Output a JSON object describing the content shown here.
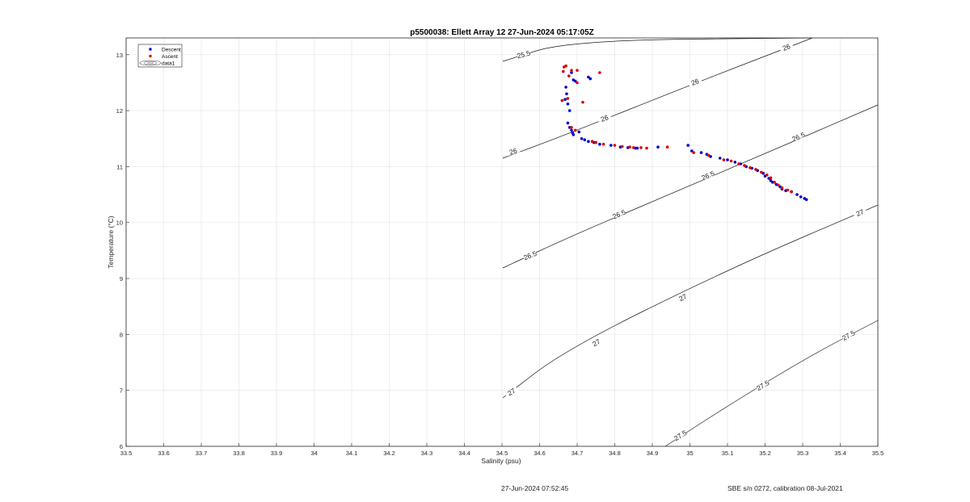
{
  "footer": {
    "left": "27-Jun-2024 07:52:45",
    "right": "SBE s/n 0272, calibration 08-Jul-2021"
  },
  "chart_data": {
    "type": "scatter",
    "title": "p5500038: Ellett Array 12 27-Jun-2024 05:17:05Z",
    "xlabel": "Salinity (psu)",
    "ylabel": "Temperature (°C)",
    "xlim": [
      33.5,
      35.5
    ],
    "ylim": [
      6,
      13.3
    ],
    "x_ticks": [
      33.5,
      33.6,
      33.7,
      33.8,
      33.9,
      34,
      34.1,
      34.2,
      34.3,
      34.4,
      34.5,
      34.6,
      34.7,
      34.8,
      34.9,
      35,
      35.1,
      35.2,
      35.3,
      35.4,
      35.5
    ],
    "x_tick_labels": [
      "33.5",
      "33.6",
      "33.7",
      "33.8",
      "33.9",
      "34",
      "34.1",
      "34.2",
      "34.3",
      "34.4",
      "34.5",
      "34.6",
      "34.7",
      "34.8",
      "34.9",
      "35",
      "35.1",
      "35.2",
      "35.3",
      "35.4",
      "35.5"
    ],
    "y_ticks": [
      6,
      7,
      8,
      9,
      10,
      11,
      12,
      13
    ],
    "y_tick_labels": [
      "6",
      "7",
      "8",
      "9",
      "10",
      "11",
      "12",
      "13"
    ],
    "grid": true,
    "legend_position": "top-left",
    "legend": [
      "Descent",
      "Ascent",
      "data1"
    ],
    "series": [
      {
        "name": "Descent",
        "color": "#0000cc",
        "points": [
          [
            34.685,
            12.68
          ],
          [
            34.69,
            12.55
          ],
          [
            34.695,
            12.53
          ],
          [
            34.73,
            12.6
          ],
          [
            34.735,
            12.57
          ],
          [
            34.67,
            12.42
          ],
          [
            34.672,
            12.3
          ],
          [
            34.668,
            12.2
          ],
          [
            34.675,
            12.12
          ],
          [
            34.68,
            12.0
          ],
          [
            34.675,
            11.78
          ],
          [
            34.68,
            11.7
          ],
          [
            34.685,
            11.65
          ],
          [
            34.688,
            11.6
          ],
          [
            34.69,
            11.57
          ],
          [
            34.705,
            11.62
          ],
          [
            34.712,
            11.5
          ],
          [
            34.72,
            11.48
          ],
          [
            34.73,
            11.45
          ],
          [
            34.745,
            11.43
          ],
          [
            34.76,
            11.4
          ],
          [
            34.79,
            11.38
          ],
          [
            34.815,
            11.35
          ],
          [
            34.835,
            11.34
          ],
          [
            34.855,
            11.33
          ],
          [
            34.86,
            11.33
          ],
          [
            34.915,
            11.35
          ],
          [
            34.995,
            11.38
          ],
          [
            35.005,
            11.28
          ],
          [
            35.03,
            11.25
          ],
          [
            35.045,
            11.22
          ],
          [
            35.055,
            11.18
          ],
          [
            35.08,
            11.15
          ],
          [
            35.1,
            11.12
          ],
          [
            35.12,
            11.08
          ],
          [
            35.135,
            11.05
          ],
          [
            35.15,
            11.0
          ],
          [
            35.165,
            10.97
          ],
          [
            35.18,
            10.93
          ],
          [
            35.195,
            10.88
          ],
          [
            35.2,
            10.83
          ],
          [
            35.21,
            10.79
          ],
          [
            35.215,
            10.75
          ],
          [
            35.22,
            10.72
          ],
          [
            35.23,
            10.68
          ],
          [
            35.24,
            10.64
          ],
          [
            35.245,
            10.6
          ],
          [
            35.255,
            10.57
          ],
          [
            35.27,
            10.55
          ],
          [
            35.285,
            10.5
          ],
          [
            35.295,
            10.46
          ],
          [
            35.305,
            10.43
          ],
          [
            35.31,
            10.41
          ]
        ]
      },
      {
        "name": "Ascent",
        "color": "#dd0000",
        "points": [
          [
            34.665,
            12.78
          ],
          [
            34.67,
            12.8
          ],
          [
            34.663,
            12.7
          ],
          [
            34.685,
            12.72
          ],
          [
            34.7,
            12.72
          ],
          [
            34.76,
            12.68
          ],
          [
            34.678,
            12.62
          ],
          [
            34.7,
            12.5
          ],
          [
            34.675,
            12.22
          ],
          [
            34.66,
            12.18
          ],
          [
            34.715,
            12.15
          ],
          [
            34.685,
            11.7
          ],
          [
            34.695,
            11.65
          ],
          [
            34.74,
            11.45
          ],
          [
            34.75,
            11.43
          ],
          [
            34.77,
            11.4
          ],
          [
            34.8,
            11.38
          ],
          [
            34.82,
            11.36
          ],
          [
            34.84,
            11.35
          ],
          [
            34.85,
            11.34
          ],
          [
            34.87,
            11.34
          ],
          [
            34.885,
            11.33
          ],
          [
            34.94,
            11.35
          ],
          [
            35.01,
            11.25
          ],
          [
            35.05,
            11.2
          ],
          [
            35.09,
            11.12
          ],
          [
            35.11,
            11.1
          ],
          [
            35.13,
            11.05
          ],
          [
            35.145,
            11.02
          ],
          [
            35.16,
            10.98
          ],
          [
            35.175,
            10.95
          ],
          [
            35.19,
            10.9
          ],
          [
            35.205,
            10.85
          ],
          [
            35.215,
            10.8
          ],
          [
            35.225,
            10.72
          ],
          [
            35.235,
            10.67
          ],
          [
            35.245,
            10.62
          ],
          [
            35.26,
            10.58
          ],
          [
            35.27,
            10.55
          ]
        ]
      }
    ],
    "contour_levels": [
      "25.5",
      "26",
      "26.5",
      "27",
      "27.5"
    ]
  }
}
